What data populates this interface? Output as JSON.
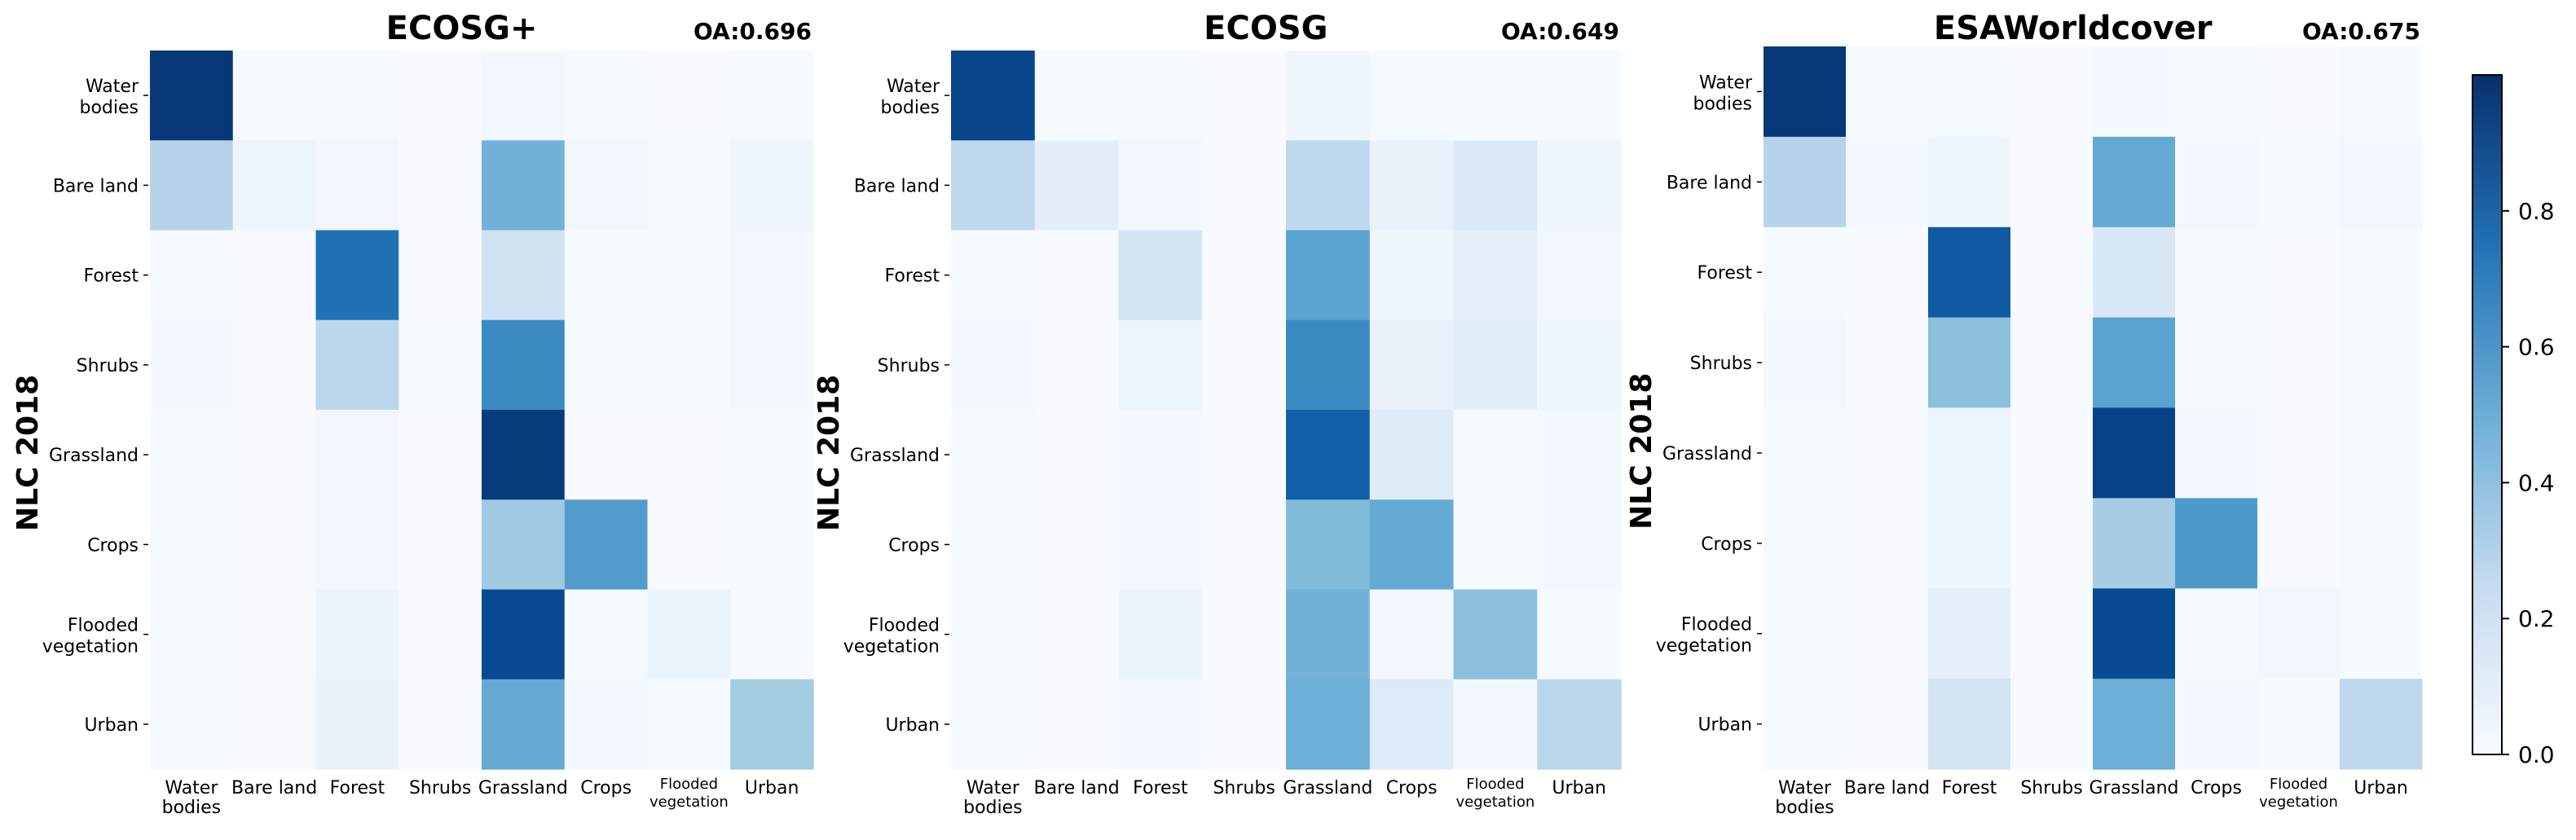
{
  "chart_data": [
    {
      "type": "heatmap",
      "title": "ECOSG+",
      "annotation": "OA:0.696",
      "ylabel": "NLC 2018",
      "rows": [
        "Water bodies",
        "Bare land",
        "Forest",
        "Shrubs",
        "Grassland",
        "Crops",
        "Flooded vegetation",
        "Urban"
      ],
      "cols": [
        "Water bodies",
        "Bare land",
        "Forest",
        "Shrubs",
        "Grassland",
        "Crops",
        "Flooded vegetation",
        "Urban"
      ],
      "values": [
        [
          0.97,
          0.01,
          0.01,
          0.0,
          0.02,
          0.01,
          0.0,
          0.01
        ],
        [
          0.3,
          0.05,
          0.03,
          0.0,
          0.48,
          0.03,
          0.01,
          0.04
        ],
        [
          0.01,
          0.0,
          0.75,
          0.0,
          0.2,
          0.01,
          0.01,
          0.02
        ],
        [
          0.02,
          0.0,
          0.28,
          0.01,
          0.65,
          0.01,
          0.01,
          0.02
        ],
        [
          0.01,
          0.0,
          0.03,
          0.0,
          0.96,
          0.0,
          0.0,
          0.01
        ],
        [
          0.01,
          0.0,
          0.02,
          0.0,
          0.37,
          0.58,
          0.0,
          0.01
        ],
        [
          0.01,
          0.0,
          0.06,
          0.0,
          0.9,
          0.01,
          0.06,
          0.01
        ],
        [
          0.01,
          0.0,
          0.07,
          0.0,
          0.52,
          0.03,
          0.01,
          0.36
        ]
      ]
    },
    {
      "type": "heatmap",
      "title": "ECOSG",
      "annotation": "OA:0.649",
      "ylabel": "NLC 2018",
      "rows": [
        "Water bodies",
        "Bare land",
        "Forest",
        "Shrubs",
        "Grassland",
        "Crops",
        "Flooded vegetation",
        "Urban"
      ],
      "cols": [
        "Water bodies",
        "Bare land",
        "Forest",
        "Shrubs",
        "Grassland",
        "Crops",
        "Flooded vegetation",
        "Urban"
      ],
      "values": [
        [
          0.92,
          0.01,
          0.01,
          0.0,
          0.04,
          0.01,
          0.01,
          0.01
        ],
        [
          0.27,
          0.1,
          0.02,
          0.0,
          0.27,
          0.07,
          0.14,
          0.04
        ],
        [
          0.01,
          0.0,
          0.17,
          0.0,
          0.55,
          0.04,
          0.09,
          0.03
        ],
        [
          0.02,
          0.0,
          0.05,
          0.0,
          0.65,
          0.07,
          0.11,
          0.04
        ],
        [
          0.01,
          0.0,
          0.02,
          0.0,
          0.82,
          0.12,
          0.01,
          0.02
        ],
        [
          0.01,
          0.0,
          0.02,
          0.0,
          0.44,
          0.52,
          0.01,
          0.02
        ],
        [
          0.01,
          0.0,
          0.06,
          0.0,
          0.48,
          0.02,
          0.42,
          0.01
        ],
        [
          0.01,
          0.0,
          0.02,
          0.0,
          0.5,
          0.13,
          0.02,
          0.29
        ]
      ]
    },
    {
      "type": "heatmap",
      "title": "ESAWorldcover",
      "annotation": "OA:0.675",
      "ylabel": "NLC 2018",
      "rows": [
        "Water bodies",
        "Bare land",
        "Forest",
        "Shrubs",
        "Grassland",
        "Crops",
        "Flooded vegetation",
        "Urban"
      ],
      "cols": [
        "Water bodies",
        "Bare land",
        "Forest",
        "Shrubs",
        "Grassland",
        "Crops",
        "Flooded vegetation",
        "Urban"
      ],
      "values": [
        [
          0.97,
          0.01,
          0.01,
          0.0,
          0.02,
          0.01,
          0.0,
          0.01
        ],
        [
          0.3,
          0.02,
          0.04,
          0.0,
          0.52,
          0.02,
          0.01,
          0.02
        ],
        [
          0.01,
          0.0,
          0.84,
          0.0,
          0.15,
          0.01,
          0.0,
          0.01
        ],
        [
          0.02,
          0.0,
          0.42,
          0.0,
          0.55,
          0.01,
          0.0,
          0.01
        ],
        [
          0.01,
          0.0,
          0.05,
          0.0,
          0.93,
          0.03,
          0.0,
          0.01
        ],
        [
          0.01,
          0.0,
          0.05,
          0.0,
          0.35,
          0.59,
          0.0,
          0.01
        ],
        [
          0.01,
          0.0,
          0.09,
          0.0,
          0.9,
          0.01,
          0.03,
          0.01
        ],
        [
          0.01,
          0.0,
          0.19,
          0.0,
          0.5,
          0.02,
          0.01,
          0.27
        ]
      ]
    }
  ],
  "colorbar": {
    "colormap": "Blues",
    "range": [
      0,
      1
    ],
    "ticks": [
      "0.0",
      "0.2",
      "0.4",
      "0.6",
      "0.8"
    ]
  }
}
